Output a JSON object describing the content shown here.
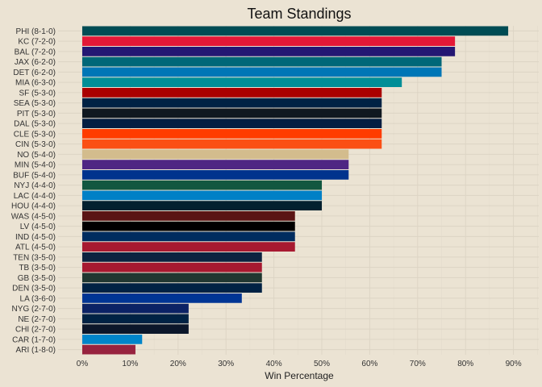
{
  "chart_data": {
    "type": "bar",
    "orientation": "horizontal",
    "title": "Team Standings",
    "xlabel": "Win Percentage",
    "ylabel": "",
    "xlim": [
      0,
      0.95
    ],
    "x_ticks": [
      0,
      0.1,
      0.2,
      0.3,
      0.4,
      0.5,
      0.6,
      0.7,
      0.8,
      0.9
    ],
    "x_tick_labels": [
      "0%",
      "10%",
      "20%",
      "30%",
      "40%",
      "50%",
      "60%",
      "70%",
      "80%",
      "90%"
    ],
    "grid": true,
    "legend": "none",
    "background": "#ebe3d3",
    "categories": [
      "PHI (8-1-0)",
      "KC (7-2-0)",
      "BAL (7-2-0)",
      "JAX (6-2-0)",
      "DET (6-2-0)",
      "MIA (6-3-0)",
      "SF (5-3-0)",
      "SEA (5-3-0)",
      "PIT (5-3-0)",
      "DAL (5-3-0)",
      "CLE (5-3-0)",
      "CIN (5-3-0)",
      "NO (5-4-0)",
      "MIN (5-4-0)",
      "BUF (5-4-0)",
      "NYJ (4-4-0)",
      "LAC (4-4-0)",
      "HOU (4-4-0)",
      "WAS (4-5-0)",
      "LV (4-5-0)",
      "IND (4-5-0)",
      "ATL (4-5-0)",
      "TEN (3-5-0)",
      "TB (3-5-0)",
      "GB (3-5-0)",
      "DEN (3-5-0)",
      "LA (3-6-0)",
      "NYG (2-7-0)",
      "NE (2-7-0)",
      "CHI (2-7-0)",
      "CAR (1-7-0)",
      "ARI (1-8-0)"
    ],
    "values": [
      0.889,
      0.778,
      0.778,
      0.75,
      0.75,
      0.667,
      0.625,
      0.625,
      0.625,
      0.625,
      0.625,
      0.625,
      0.556,
      0.556,
      0.556,
      0.5,
      0.5,
      0.5,
      0.444,
      0.444,
      0.444,
      0.444,
      0.375,
      0.375,
      0.375,
      0.375,
      0.333,
      0.222,
      0.222,
      0.222,
      0.125,
      0.111
    ],
    "colors": [
      "#004c54",
      "#e31837",
      "#241773",
      "#006778",
      "#0076b6",
      "#008e97",
      "#aa0000",
      "#002244",
      "#101820",
      "#041e42",
      "#ff3c00",
      "#fb4f14",
      "#d3bc8d",
      "#4f2683",
      "#00338d",
      "#125740",
      "#0080c6",
      "#03202f",
      "#5a1414",
      "#000000",
      "#002c5f",
      "#a71930",
      "#0c2340",
      "#a71930",
      "#203731",
      "#002244",
      "#003594",
      "#0b2265",
      "#002244",
      "#0b162a",
      "#0085ca",
      "#97233f"
    ]
  }
}
